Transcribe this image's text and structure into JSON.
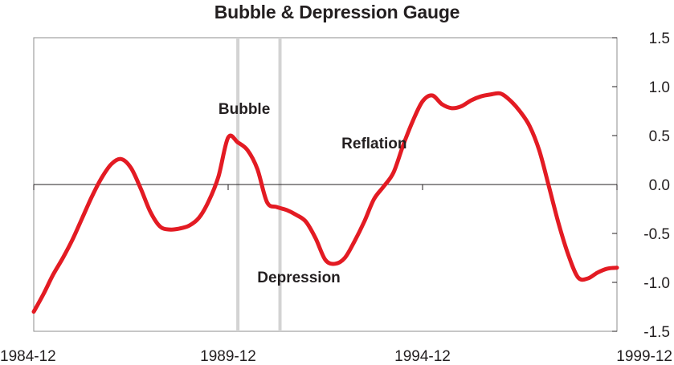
{
  "chart_data": {
    "type": "line",
    "title": "Bubble & Depression Gauge",
    "xlabel": "",
    "ylabel": "",
    "x_range": [
      "1984-12",
      "1999-12"
    ],
    "ylim": [
      -1.5,
      1.5
    ],
    "x_ticks": [
      "1984-12",
      "1989-12",
      "1994-12",
      "1999-12"
    ],
    "y_ticks": [
      "1.5",
      "1.0",
      "0.5",
      "0.0",
      "-0.5",
      "-1.0",
      "-1.5"
    ],
    "y_axis_side": "right",
    "zero_line": true,
    "grid": false,
    "line_color": "#e31b23",
    "marker_lines": [
      {
        "x": "1990-03",
        "color": "#d3d3d3"
      },
      {
        "x": "1991-04",
        "color": "#d3d3d3"
      }
    ],
    "annotations": [
      {
        "text": "Bubble",
        "x": "1989-09",
        "y": 0.72
      },
      {
        "text": "Reflation",
        "x": "1992-11",
        "y": 0.37
      },
      {
        "text": "Depression",
        "x": "1990-09",
        "y": -1.0
      }
    ],
    "series": [
      {
        "x": [
          "1984-12",
          "1985-03",
          "1985-06",
          "1985-09",
          "1985-12",
          "1986-03",
          "1986-06",
          "1986-09",
          "1986-12",
          "1987-03",
          "1987-06",
          "1987-09",
          "1987-12",
          "1988-03",
          "1988-06",
          "1988-09",
          "1988-12",
          "1989-03",
          "1989-06",
          "1989-09",
          "1989-12",
          "1990-03",
          "1990-06",
          "1990-09",
          "1990-12",
          "1991-03",
          "1991-06",
          "1991-09",
          "1991-12",
          "1992-03",
          "1992-06",
          "1992-09",
          "1992-12",
          "1993-03",
          "1993-06",
          "1993-09",
          "1993-12",
          "1994-03",
          "1994-06",
          "1994-09",
          "1994-12",
          "1995-03",
          "1995-06",
          "1995-09",
          "1995-12",
          "1996-03",
          "1996-06",
          "1996-09",
          "1996-12",
          "1997-03",
          "1997-06",
          "1997-09",
          "1997-12",
          "1998-03",
          "1998-06",
          "1998-09",
          "1998-12",
          "1999-03",
          "1999-06",
          "1999-09",
          "1999-12"
        ],
        "values": [
          -1.3,
          -1.12,
          -0.92,
          -0.75,
          -0.56,
          -0.34,
          -0.12,
          0.07,
          0.21,
          0.26,
          0.17,
          -0.04,
          -0.28,
          -0.43,
          -0.46,
          -0.45,
          -0.42,
          -0.34,
          -0.17,
          0.08,
          0.48,
          0.43,
          0.35,
          0.16,
          -0.18,
          -0.23,
          -0.26,
          -0.31,
          -0.38,
          -0.55,
          -0.77,
          -0.81,
          -0.75,
          -0.58,
          -0.38,
          -0.15,
          -0.02,
          0.12,
          0.4,
          0.65,
          0.85,
          0.91,
          0.82,
          0.78,
          0.8,
          0.86,
          0.9,
          0.92,
          0.93,
          0.86,
          0.75,
          0.6,
          0.35,
          -0.02,
          -0.4,
          -0.72,
          -0.95,
          -0.96,
          -0.9,
          -0.86,
          -0.85
        ]
      }
    ]
  }
}
